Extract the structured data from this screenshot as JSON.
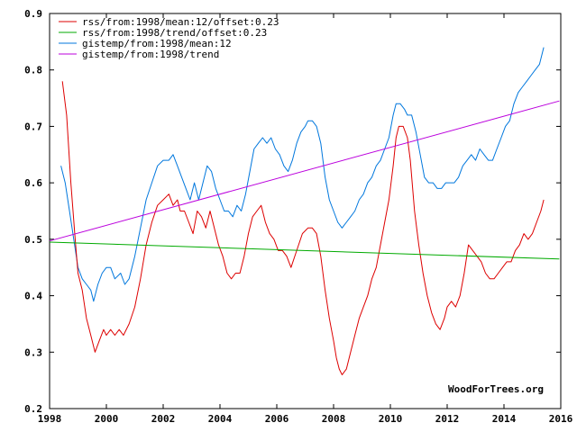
{
  "chart_data": {
    "type": "line",
    "title": "",
    "xlabel": "",
    "ylabel": "",
    "xlim": [
      1998,
      2016
    ],
    "ylim": [
      0.2,
      0.9
    ],
    "x_ticks": [
      1998,
      2000,
      2002,
      2004,
      2006,
      2008,
      2010,
      2012,
      2014,
      2016
    ],
    "x_tick_labels": [
      "1998",
      "2000",
      "2002",
      "2004",
      "2006",
      "2008",
      "2010",
      "2012",
      "2014",
      "2016"
    ],
    "y_ticks": [
      0.2,
      0.3,
      0.4,
      0.5,
      0.6,
      0.7,
      0.8,
      0.9
    ],
    "y_tick_labels": [
      "0.2",
      "0.3",
      "0.4",
      "0.5",
      "0.6",
      "0.7",
      "0.8",
      "0.9"
    ],
    "legend_position": "top-left",
    "watermark": "WoodForTrees.org",
    "series": [
      {
        "name": "rss/from:1998/mean:12/offset:0.23",
        "color": "#dd0000",
        "x": [
          1998.45,
          1998.6,
          1998.75,
          1998.9,
          1999.0,
          1999.15,
          1999.3,
          1999.45,
          1999.6,
          1999.75,
          1999.9,
          2000.0,
          2000.15,
          2000.3,
          2000.45,
          2000.6,
          2000.8,
          2001.0,
          2001.2,
          2001.4,
          2001.6,
          2001.8,
          2002.0,
          2002.2,
          2002.35,
          2002.5,
          2002.6,
          2002.75,
          2002.9,
          2003.05,
          2003.2,
          2003.35,
          2003.5,
          2003.65,
          2003.8,
          2003.95,
          2004.1,
          2004.25,
          2004.4,
          2004.55,
          2004.7,
          2004.85,
          2005.0,
          2005.15,
          2005.3,
          2005.45,
          2005.6,
          2005.75,
          2005.9,
          2006.05,
          2006.2,
          2006.35,
          2006.5,
          2006.7,
          2006.9,
          2007.1,
          2007.25,
          2007.4,
          2007.55,
          2007.7,
          2007.85,
          2008.0,
          2008.1,
          2008.2,
          2008.3,
          2008.45,
          2008.6,
          2008.75,
          2008.9,
          2009.05,
          2009.2,
          2009.35,
          2009.5,
          2009.65,
          2009.8,
          2009.95,
          2010.1,
          2010.2,
          2010.3,
          2010.45,
          2010.6,
          2010.7,
          2010.85,
          2011.0,
          2011.15,
          2011.3,
          2011.45,
          2011.6,
          2011.75,
          2011.9,
          2012.0,
          2012.15,
          2012.3,
          2012.45,
          2012.6,
          2012.75,
          2012.9,
          2013.05,
          2013.2,
          2013.35,
          2013.5,
          2013.65,
          2013.8,
          2013.95,
          2014.1,
          2014.25,
          2014.4,
          2014.55,
          2014.7,
          2014.85,
          2015.0,
          2015.15,
          2015.3,
          2015.4
        ],
        "values": [
          0.78,
          0.72,
          0.6,
          0.5,
          0.44,
          0.41,
          0.36,
          0.33,
          0.3,
          0.32,
          0.34,
          0.33,
          0.34,
          0.33,
          0.34,
          0.33,
          0.35,
          0.38,
          0.43,
          0.49,
          0.53,
          0.56,
          0.57,
          0.58,
          0.56,
          0.57,
          0.55,
          0.55,
          0.53,
          0.51,
          0.55,
          0.54,
          0.52,
          0.55,
          0.52,
          0.49,
          0.47,
          0.44,
          0.43,
          0.44,
          0.44,
          0.47,
          0.51,
          0.54,
          0.55,
          0.56,
          0.53,
          0.51,
          0.5,
          0.48,
          0.48,
          0.47,
          0.45,
          0.48,
          0.51,
          0.52,
          0.52,
          0.51,
          0.47,
          0.41,
          0.36,
          0.32,
          0.29,
          0.27,
          0.26,
          0.27,
          0.3,
          0.33,
          0.36,
          0.38,
          0.4,
          0.43,
          0.45,
          0.49,
          0.53,
          0.57,
          0.63,
          0.68,
          0.7,
          0.7,
          0.68,
          0.64,
          0.55,
          0.49,
          0.44,
          0.4,
          0.37,
          0.35,
          0.34,
          0.36,
          0.38,
          0.39,
          0.38,
          0.4,
          0.44,
          0.49,
          0.48,
          0.47,
          0.46,
          0.44,
          0.43,
          0.43,
          0.44,
          0.45,
          0.46,
          0.46,
          0.48,
          0.49,
          0.51,
          0.5,
          0.51,
          0.53,
          0.55,
          0.57
        ]
      },
      {
        "name": "rss/from:1998/trend/offset:0.23",
        "color": "#00aa00",
        "x": [
          1998,
          2015.95
        ],
        "values": [
          0.495,
          0.465
        ]
      },
      {
        "name": "gistemp/from:1998/mean:12",
        "color": "#0077dd",
        "x": [
          1998.4,
          1998.55,
          1998.7,
          1998.85,
          1999.0,
          1999.15,
          1999.3,
          1999.45,
          1999.55,
          1999.7,
          1999.85,
          2000.0,
          2000.15,
          2000.3,
          2000.5,
          2000.65,
          2000.8,
          2001.0,
          2001.2,
          2001.4,
          2001.6,
          2001.8,
          2002.0,
          2002.2,
          2002.35,
          2002.5,
          2002.65,
          2002.8,
          2002.95,
          2003.1,
          2003.25,
          2003.4,
          2003.55,
          2003.7,
          2003.85,
          2004.0,
          2004.15,
          2004.3,
          2004.45,
          2004.6,
          2004.75,
          2004.9,
          2005.05,
          2005.2,
          2005.35,
          2005.5,
          2005.65,
          2005.8,
          2005.95,
          2006.1,
          2006.25,
          2006.4,
          2006.55,
          2006.7,
          2006.85,
          2007.0,
          2007.1,
          2007.25,
          2007.4,
          2007.55,
          2007.7,
          2007.85,
          2008.0,
          2008.15,
          2008.3,
          2008.45,
          2008.6,
          2008.75,
          2008.9,
          2009.05,
          2009.2,
          2009.35,
          2009.5,
          2009.65,
          2009.8,
          2009.95,
          2010.1,
          2010.2,
          2010.35,
          2010.5,
          2010.6,
          2010.75,
          2010.9,
          2011.05,
          2011.2,
          2011.35,
          2011.5,
          2011.65,
          2011.8,
          2011.95,
          2012.1,
          2012.25,
          2012.4,
          2012.55,
          2012.7,
          2012.85,
          2013.0,
          2013.15,
          2013.3,
          2013.45,
          2013.6,
          2013.75,
          2013.9,
          2014.05,
          2014.2,
          2014.35,
          2014.5,
          2014.65,
          2014.8,
          2014.95,
          2015.1,
          2015.25,
          2015.4
        ],
        "values": [
          0.63,
          0.6,
          0.55,
          0.5,
          0.45,
          0.43,
          0.42,
          0.41,
          0.39,
          0.42,
          0.44,
          0.45,
          0.45,
          0.43,
          0.44,
          0.42,
          0.43,
          0.47,
          0.52,
          0.57,
          0.6,
          0.63,
          0.64,
          0.64,
          0.65,
          0.63,
          0.61,
          0.59,
          0.57,
          0.6,
          0.57,
          0.6,
          0.63,
          0.62,
          0.59,
          0.57,
          0.55,
          0.55,
          0.54,
          0.56,
          0.55,
          0.58,
          0.62,
          0.66,
          0.67,
          0.68,
          0.67,
          0.68,
          0.66,
          0.65,
          0.63,
          0.62,
          0.64,
          0.67,
          0.69,
          0.7,
          0.71,
          0.71,
          0.7,
          0.67,
          0.61,
          0.57,
          0.55,
          0.53,
          0.52,
          0.53,
          0.54,
          0.55,
          0.57,
          0.58,
          0.6,
          0.61,
          0.63,
          0.64,
          0.66,
          0.68,
          0.72,
          0.74,
          0.74,
          0.73,
          0.72,
          0.72,
          0.69,
          0.65,
          0.61,
          0.6,
          0.6,
          0.59,
          0.59,
          0.6,
          0.6,
          0.6,
          0.61,
          0.63,
          0.64,
          0.65,
          0.64,
          0.66,
          0.65,
          0.64,
          0.64,
          0.66,
          0.68,
          0.7,
          0.71,
          0.74,
          0.76,
          0.77,
          0.78,
          0.79,
          0.8,
          0.81,
          0.84
        ]
      },
      {
        "name": "gistemp/from:1998/trend",
        "color": "#bb00dd",
        "x": [
          1998,
          2015.95
        ],
        "values": [
          0.497,
          0.745
        ]
      }
    ]
  }
}
